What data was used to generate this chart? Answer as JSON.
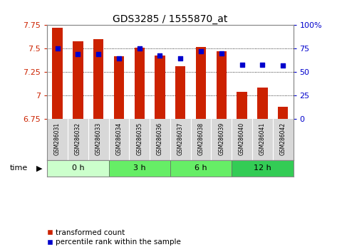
{
  "title": "GDS3285 / 1555870_at",
  "samples": [
    "GSM286031",
    "GSM286032",
    "GSM286033",
    "GSM286034",
    "GSM286035",
    "GSM286036",
    "GSM286037",
    "GSM286038",
    "GSM286039",
    "GSM286040",
    "GSM286041",
    "GSM286042"
  ],
  "bar_values": [
    7.72,
    7.58,
    7.6,
    7.42,
    7.51,
    7.43,
    7.31,
    7.52,
    7.47,
    7.04,
    7.09,
    6.88
  ],
  "bar_base": 6.75,
  "percentile_values": [
    75,
    69,
    69,
    65,
    75,
    68,
    65,
    72,
    70,
    58,
    58,
    57
  ],
  "bar_color": "#cc2200",
  "dot_color": "#0000cc",
  "ylim_left": [
    6.75,
    7.75
  ],
  "ylim_right": [
    0,
    100
  ],
  "yticks_left": [
    6.75,
    7.0,
    7.25,
    7.5,
    7.75
  ],
  "yticks_right": [
    0,
    25,
    50,
    75,
    100
  ],
  "ytick_labels_left": [
    "6.75",
    "7",
    "7.25",
    "7.5",
    "7.75"
  ],
  "ytick_labels_right": [
    "0",
    "25",
    "50",
    "75",
    "100%"
  ],
  "groups": [
    {
      "label": "0 h",
      "start": 0,
      "end": 3,
      "color": "#ccffcc"
    },
    {
      "label": "3 h",
      "start": 3,
      "end": 6,
      "color": "#66ee66"
    },
    {
      "label": "6 h",
      "start": 6,
      "end": 9,
      "color": "#66ee66"
    },
    {
      "label": "12 h",
      "start": 9,
      "end": 12,
      "color": "#33cc55"
    }
  ],
  "time_label": "time",
  "legend_bar_label": "transformed count",
  "legend_dot_label": "percentile rank within the sample",
  "bg_color": "#ffffff",
  "grid_color": "#000000",
  "tick_label_color_left": "#cc2200",
  "tick_label_color_right": "#0000cc"
}
